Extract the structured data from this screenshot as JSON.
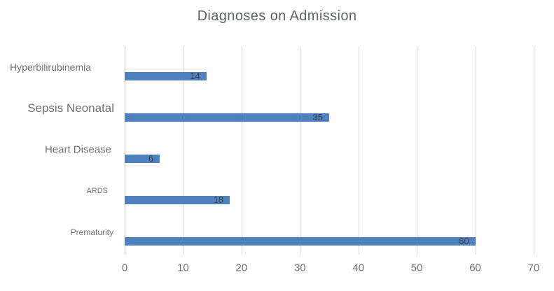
{
  "title": "Diagnoses on Admission",
  "chart_data": {
    "type": "bar",
    "orientation": "horizontal",
    "title": "Diagnoses on Admission",
    "categories": [
      "Hyperbilirubinemia",
      "Sepsis Neonatal",
      "Heart Disease",
      "ARDS",
      "Prematurity"
    ],
    "values": [
      14,
      35,
      6,
      18,
      60
    ],
    "data_labels": [
      "14",
      "35",
      "6",
      "18",
      "60"
    ],
    "data_label_position": "inside-end",
    "xlabel": "",
    "ylabel": "",
    "xlim": [
      0,
      70
    ],
    "xticks": [
      "0",
      "10",
      "20",
      "30",
      "40",
      "50",
      "60",
      "70"
    ],
    "grid": "vertical-gridlines",
    "legend": "none"
  },
  "colors": {
    "bar": "#4e81bd",
    "title_text": "#5f6368",
    "category_text": "#6e7276",
    "tick_text": "#6e7276",
    "data_label_text": "#3d3f42",
    "gridline": "#d9d9d9",
    "zero_line": "#c3c6c9",
    "background": "#ffffff"
  }
}
